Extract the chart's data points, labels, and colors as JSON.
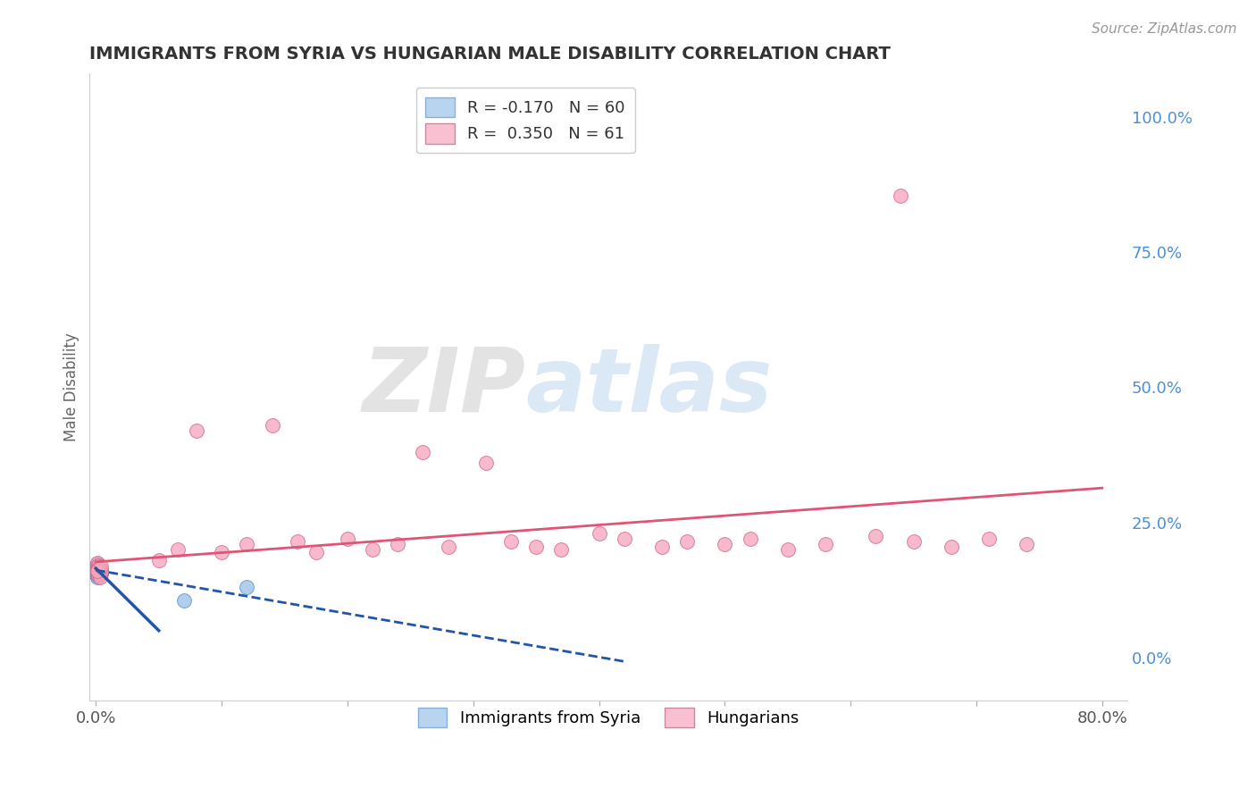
{
  "title": "IMMIGRANTS FROM SYRIA VS HUNGARIAN MALE DISABILITY CORRELATION CHART",
  "source_text": "Source: ZipAtlas.com",
  "ylabel": "Male Disability",
  "xlim": [
    -0.005,
    0.82
  ],
  "ylim": [
    -0.08,
    1.08
  ],
  "x_ticks": [
    0.0,
    0.1,
    0.2,
    0.3,
    0.4,
    0.5,
    0.6,
    0.7,
    0.8
  ],
  "y_tick_right": [
    0.0,
    0.25,
    0.5,
    0.75,
    1.0
  ],
  "y_tick_right_labels": [
    "0.0%",
    "25.0%",
    "50.0%",
    "75.0%",
    "100.0%"
  ],
  "blue_color": "#9ec4e8",
  "blue_edge_color": "#5a8fc0",
  "pink_color": "#f5a8be",
  "pink_edge_color": "#d06888",
  "blue_line_color": "#2255aa",
  "pink_line_color": "#e05575",
  "watermark_zip": "ZIP",
  "watermark_atlas": "atlas",
  "background_color": "#ffffff",
  "grid_color": "#cccccc",
  "title_color": "#333333",
  "legend_blue_face": "#b8d4ee",
  "legend_pink_face": "#f8c0d0",
  "blue_scatter_x": [
    0.002,
    0.001,
    0.001,
    0.002,
    0.001,
    0.001,
    0.002,
    0.001,
    0.001,
    0.001,
    0.001,
    0.002,
    0.001,
    0.001,
    0.001,
    0.001,
    0.002,
    0.001,
    0.001,
    0.001,
    0.001,
    0.001,
    0.002,
    0.001,
    0.001,
    0.001,
    0.002,
    0.001,
    0.001,
    0.001,
    0.001,
    0.001,
    0.001,
    0.002,
    0.001,
    0.001,
    0.002,
    0.001,
    0.001,
    0.001,
    0.001,
    0.001,
    0.001,
    0.001,
    0.002,
    0.001,
    0.001,
    0.001,
    0.001,
    0.001,
    0.001,
    0.001,
    0.001,
    0.001,
    0.001,
    0.001,
    0.001,
    0.001,
    0.12,
    0.07
  ],
  "blue_scatter_y": [
    0.158,
    0.162,
    0.165,
    0.168,
    0.155,
    0.171,
    0.16,
    0.157,
    0.163,
    0.17,
    0.152,
    0.166,
    0.159,
    0.173,
    0.154,
    0.161,
    0.167,
    0.15,
    0.164,
    0.158,
    0.169,
    0.156,
    0.162,
    0.174,
    0.153,
    0.16,
    0.165,
    0.171,
    0.157,
    0.163,
    0.168,
    0.155,
    0.159,
    0.164,
    0.17,
    0.152,
    0.166,
    0.158,
    0.173,
    0.154,
    0.161,
    0.167,
    0.15,
    0.163,
    0.157,
    0.169,
    0.155,
    0.16,
    0.165,
    0.171,
    0.158,
    0.163,
    0.149,
    0.156,
    0.162,
    0.168,
    0.154,
    0.16,
    0.13,
    0.105
  ],
  "pink_scatter_x": [
    0.002,
    0.003,
    0.001,
    0.004,
    0.002,
    0.003,
    0.001,
    0.004,
    0.002,
    0.003,
    0.001,
    0.002,
    0.003,
    0.004,
    0.002,
    0.003,
    0.001,
    0.002,
    0.004,
    0.003,
    0.002,
    0.001,
    0.003,
    0.002,
    0.004,
    0.001,
    0.003,
    0.002,
    0.001,
    0.004,
    0.05,
    0.065,
    0.08,
    0.1,
    0.12,
    0.14,
    0.16,
    0.175,
    0.2,
    0.22,
    0.24,
    0.26,
    0.28,
    0.31,
    0.33,
    0.35,
    0.37,
    0.4,
    0.42,
    0.45,
    0.47,
    0.5,
    0.52,
    0.55,
    0.58,
    0.62,
    0.65,
    0.68,
    0.71,
    0.74,
    0.64
  ],
  "pink_scatter_y": [
    0.16,
    0.165,
    0.17,
    0.155,
    0.163,
    0.158,
    0.168,
    0.162,
    0.172,
    0.157,
    0.175,
    0.152,
    0.166,
    0.161,
    0.169,
    0.154,
    0.164,
    0.17,
    0.156,
    0.159,
    0.163,
    0.167,
    0.155,
    0.171,
    0.158,
    0.162,
    0.149,
    0.165,
    0.16,
    0.168,
    0.18,
    0.2,
    0.42,
    0.195,
    0.21,
    0.43,
    0.215,
    0.195,
    0.22,
    0.2,
    0.21,
    0.38,
    0.205,
    0.36,
    0.215,
    0.205,
    0.2,
    0.23,
    0.22,
    0.205,
    0.215,
    0.21,
    0.22,
    0.2,
    0.21,
    0.225,
    0.215,
    0.205,
    0.22,
    0.21,
    0.855
  ]
}
